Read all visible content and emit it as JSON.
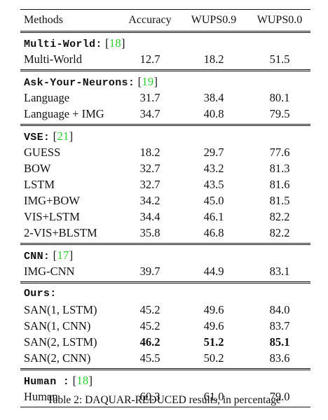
{
  "table": {
    "headers": [
      "Methods",
      "Accuracy",
      "WUPS0.9",
      "WUPS0.0"
    ],
    "groups": [
      {
        "title": "Multi-World:",
        "cite_open": "[",
        "cite_num": "18",
        "cite_close": "]",
        "rows": [
          {
            "method": "Multi-World",
            "accuracy": "12.7",
            "wups09": "18.2",
            "wups00": "51.5"
          }
        ]
      },
      {
        "title": "Ask-Your-Neurons:",
        "cite_open": "[",
        "cite_num": "19",
        "cite_close": "]",
        "rows": [
          {
            "method": "Language",
            "accuracy": "31.7",
            "wups09": "38.4",
            "wups00": "80.1"
          },
          {
            "method": "Language + IMG",
            "accuracy": "34.7",
            "wups09": "40.8",
            "wups00": "79.5"
          }
        ]
      },
      {
        "title": "VSE:",
        "cite_open": "[",
        "cite_num": "21",
        "cite_close": "]",
        "rows": [
          {
            "method": "GUESS",
            "accuracy": "18.2",
            "wups09": "29.7",
            "wups00": "77.6"
          },
          {
            "method": "BOW",
            "accuracy": "32.7",
            "wups09": "43.2",
            "wups00": "81.3"
          },
          {
            "method": "LSTM",
            "accuracy": "32.7",
            "wups09": "43.5",
            "wups00": "81.6"
          },
          {
            "method": "IMG+BOW",
            "accuracy": "34.2",
            "wups09": "45.0",
            "wups00": "81.5"
          },
          {
            "method": "VIS+LSTM",
            "accuracy": "34.4",
            "wups09": "46.1",
            "wups00": "82.2"
          },
          {
            "method": "2-VIS+BLSTM",
            "accuracy": "35.8",
            "wups09": "46.8",
            "wups00": "82.2"
          }
        ]
      },
      {
        "title": "CNN:",
        "cite_open": "[",
        "cite_num": "17",
        "cite_close": "]",
        "rows": [
          {
            "method": "IMG-CNN",
            "accuracy": "39.7",
            "wups09": "44.9",
            "wups00": "83.1"
          }
        ]
      },
      {
        "title": "Ours:",
        "cite_open": "",
        "cite_num": "",
        "cite_close": "",
        "rows": [
          {
            "method": "SAN(1, LSTM)",
            "accuracy": "45.2",
            "wups09": "49.6",
            "wups00": "84.0"
          },
          {
            "method": "SAN(1, CNN)",
            "accuracy": "45.2",
            "wups09": "49.6",
            "wups00": "83.7"
          },
          {
            "method": "SAN(2, LSTM)",
            "accuracy": "46.2",
            "wups09": "51.2",
            "wups00": "85.1",
            "bold": true
          },
          {
            "method": "SAN(2, CNN)",
            "accuracy": "45.5",
            "wups09": "50.2",
            "wups00": "83.6"
          }
        ]
      },
      {
        "title": "Human :",
        "cite_open": "[",
        "cite_num": "18",
        "cite_close": "]",
        "rows": [
          {
            "method": "Human",
            "accuracy": "60.3",
            "wups09": "61.0",
            "wups00": "79.0"
          }
        ]
      }
    ]
  },
  "caption": "Table 2: DAQUAR-REDUCED results, in percentage",
  "colors": {
    "citation": "#2bcd2b",
    "text": "#111111"
  }
}
